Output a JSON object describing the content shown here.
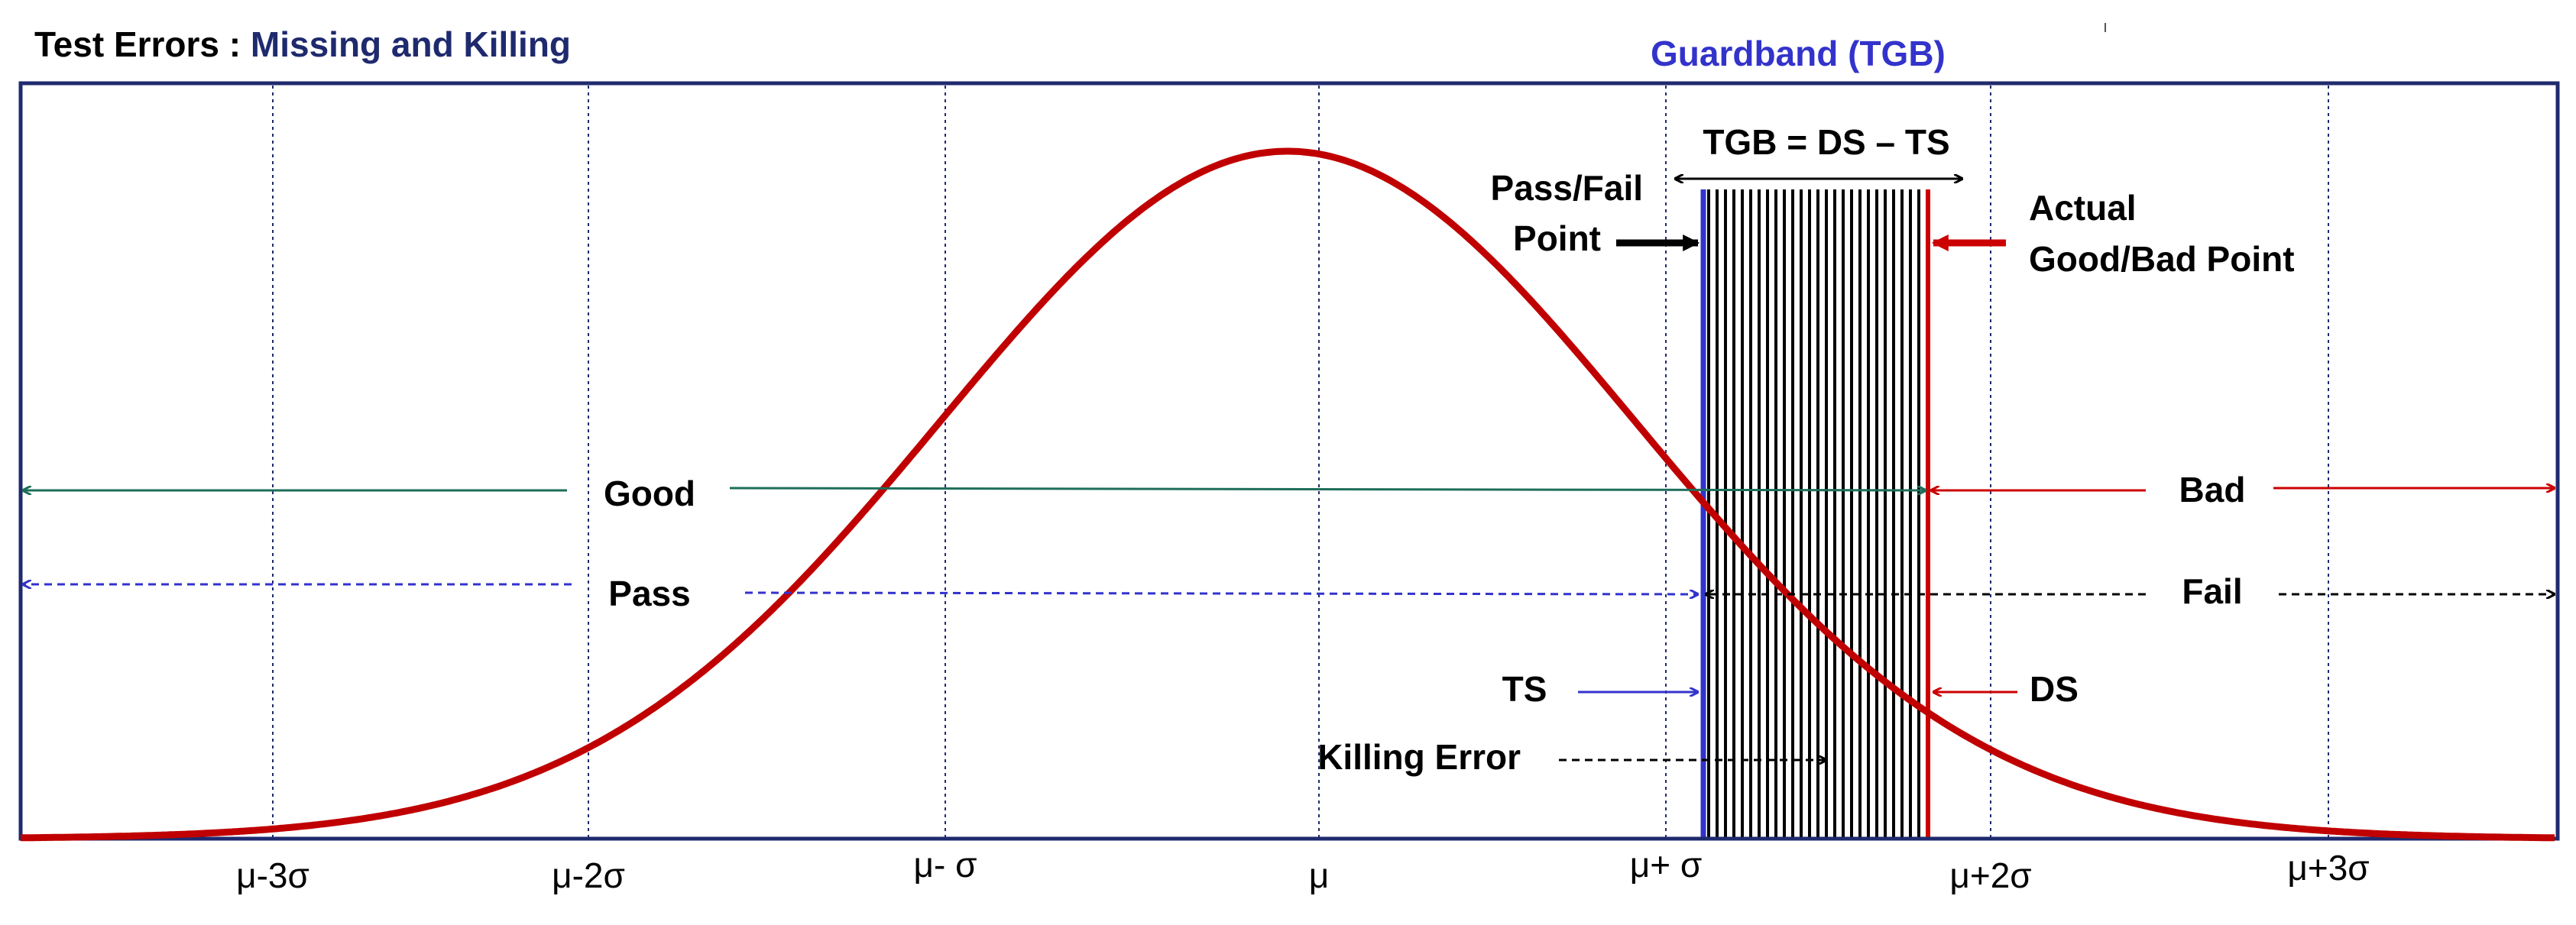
{
  "title": {
    "prefix": "Test Errors : ",
    "emphasis": "Missing and Killing"
  },
  "guardband": {
    "heading": "Guardband (TGB)",
    "formula": "TGB = DS – TS"
  },
  "pass_fail_point": {
    "line1": "Pass/Fail",
    "line2": "Point"
  },
  "actual_point": {
    "line1": "Actual",
    "line2": "Good/Bad Point"
  },
  "regions": {
    "good": "Good",
    "bad": "Bad",
    "pass": "Pass",
    "fail": "Fail",
    "ts": "TS",
    "ds": "DS",
    "killing_error": "Killing Error"
  },
  "axis": {
    "ticks": [
      {
        "label": "μ-3σ",
        "value": -3
      },
      {
        "label": "μ-2σ",
        "value": -2
      },
      {
        "label": "μ- σ",
        "value": -1
      },
      {
        "label": "μ",
        "value": 0
      },
      {
        "label": "μ+ σ",
        "value": 1
      },
      {
        "label": "μ+2σ",
        "value": 2
      },
      {
        "label": "μ+3σ",
        "value": 3
      }
    ]
  },
  "colors": {
    "title_accent": "#1f2a6e",
    "guardband_blue": "#3333cc",
    "frame": "#1f2a6e",
    "curve": "#c00000",
    "good_green": "#1e6e5a",
    "pass_blue": "#3333cc",
    "bad_red": "#cc0000",
    "black": "#000000"
  }
}
